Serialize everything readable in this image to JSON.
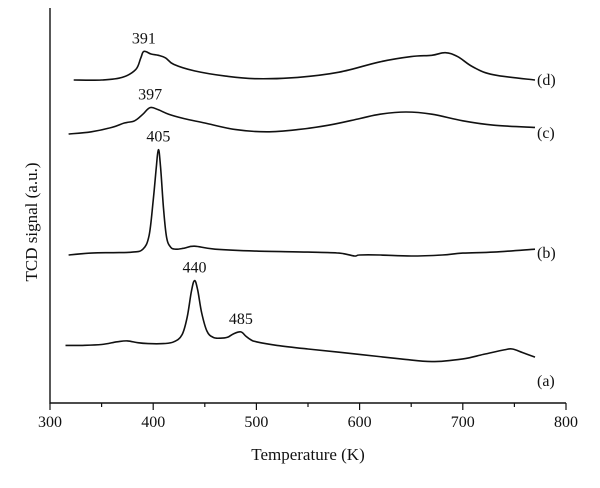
{
  "chart_data": {
    "type": "line",
    "title": "",
    "xlabel": "Temperature (K)",
    "ylabel": "TCD signal (a.u.)",
    "xlim": [
      300,
      800
    ],
    "xticks": [
      300,
      400,
      500,
      600,
      700,
      800
    ],
    "yticks_shown": false,
    "grid": false,
    "series": [
      {
        "name": "(a)",
        "x": [
          315,
          330,
          350,
          365,
          375,
          385,
          395,
          410,
          420,
          428,
          433,
          437,
          440,
          443,
          447,
          452,
          458,
          465,
          472,
          478,
          485,
          490,
          495,
          500,
          520,
          550,
          600,
          640,
          670,
          700,
          720,
          740,
          748,
          758,
          770
        ],
        "y": [
          0.02,
          0.02,
          0.025,
          0.04,
          0.045,
          0.035,
          0.03,
          0.03,
          0.04,
          0.08,
          0.18,
          0.32,
          0.38,
          0.33,
          0.2,
          0.1,
          0.065,
          0.06,
          0.065,
          0.085,
          0.095,
          0.07,
          0.05,
          0.04,
          0.02,
          0.0,
          -0.03,
          -0.055,
          -0.07,
          -0.055,
          -0.03,
          -0.005,
          0.0,
          -0.02,
          -0.045
        ]
      },
      {
        "name": "(b)",
        "x": [
          318,
          340,
          360,
          380,
          390,
          396,
          400,
          403,
          405,
          407,
          410,
          413,
          417,
          422,
          430,
          440,
          460,
          500,
          550,
          580,
          595,
          600,
          620,
          650,
          680,
          700,
          730,
          770
        ],
        "y": [
          0.0,
          0.01,
          0.012,
          0.015,
          0.03,
          0.1,
          0.28,
          0.45,
          0.54,
          0.46,
          0.24,
          0.09,
          0.04,
          0.03,
          0.035,
          0.045,
          0.03,
          0.02,
          0.015,
          0.01,
          -0.005,
          0.0,
          0.0,
          -0.005,
          0.0,
          0.01,
          0.015,
          0.03
        ]
      },
      {
        "name": "(c)",
        "x": [
          318,
          340,
          360,
          372,
          382,
          390,
          397,
          405,
          415,
          430,
          450,
          480,
          510,
          540,
          570,
          600,
          620,
          645,
          670,
          700,
          730,
          770
        ],
        "y": [
          0.0,
          0.01,
          0.03,
          0.05,
          0.06,
          0.09,
          0.12,
          0.11,
          0.09,
          0.07,
          0.05,
          0.02,
          0.01,
          0.02,
          0.04,
          0.07,
          0.09,
          0.1,
          0.09,
          0.06,
          0.04,
          0.03
        ]
      },
      {
        "name": "(d)",
        "x": [
          323,
          350,
          370,
          383,
          388,
          391,
          398,
          405,
          412,
          420,
          440,
          470,
          500,
          540,
          580,
          620,
          650,
          670,
          683,
          695,
          710,
          730,
          770
        ],
        "y": [
          0.0,
          0.0,
          0.01,
          0.04,
          0.085,
          0.11,
          0.1,
          0.095,
          0.085,
          0.06,
          0.035,
          0.015,
          0.005,
          0.01,
          0.03,
          0.07,
          0.09,
          0.095,
          0.105,
          0.09,
          0.05,
          0.02,
          0.0
        ]
      }
    ],
    "peak_labels": [
      {
        "text": "391",
        "x": 391,
        "series": "(d)"
      },
      {
        "text": "397",
        "x": 397,
        "series": "(c)"
      },
      {
        "text": "405",
        "x": 405,
        "series": "(b)"
      },
      {
        "text": "440",
        "x": 440,
        "series": "(a)"
      },
      {
        "text": "485",
        "x": 485,
        "series": "(a)"
      }
    ]
  }
}
